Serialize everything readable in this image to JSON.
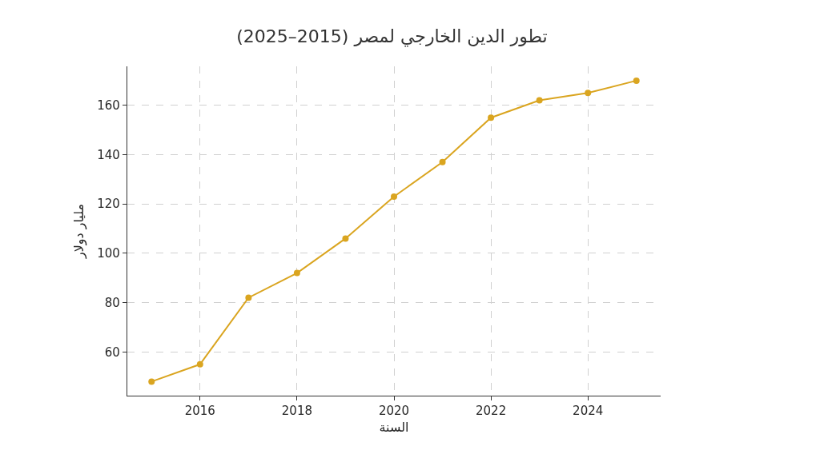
{
  "chart_data": {
    "type": "line",
    "title": "تطور الدين الخارجي لمصر (2015–2025)",
    "xlabel": "السنة",
    "ylabel": "مليار دولار",
    "x": [
      2015,
      2016,
      2017,
      2018,
      2019,
      2020,
      2021,
      2022,
      2023,
      2024,
      2025
    ],
    "series": [
      {
        "color": "#daa520",
        "values": [
          48,
          55,
          82,
          92,
          106,
          123,
          137,
          155,
          162,
          165,
          170
        ]
      }
    ],
    "xlim": [
      2014.5,
      2025.5
    ],
    "xticks": [
      2016,
      2018,
      2020,
      2022,
      2024
    ],
    "ylim": [
      42.3,
      175.8
    ],
    "yticks": [
      60,
      80,
      100,
      120,
      140,
      160
    ],
    "grid": true,
    "marker": "circle",
    "line_style": "solid"
  }
}
